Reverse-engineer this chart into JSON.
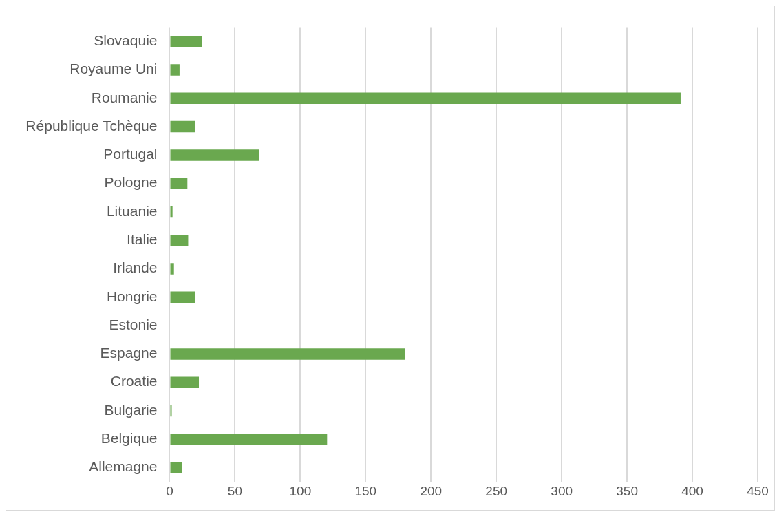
{
  "chart_data": {
    "type": "bar",
    "orientation": "horizontal",
    "categories": [
      "Slovaquie",
      "Royaume Uni",
      "Roumanie",
      "République Tchèque",
      "Portugal",
      "Pologne",
      "Lituanie",
      "Italie",
      "Irlande",
      "Hongrie",
      "Estonie",
      "Espagne",
      "Croatie",
      "Bulgarie",
      "Belgique",
      "Allemagne"
    ],
    "values": [
      24.5,
      7.6,
      391,
      19.6,
      68.7,
      13.6,
      2.2,
      14.2,
      3.3,
      19.6,
      0,
      180,
      22.4,
      1.6,
      120.5,
      9.3
    ],
    "color": "#6aa84f",
    "xlim": [
      0,
      450
    ],
    "xticks": [
      0,
      50,
      100,
      150,
      200,
      250,
      300,
      350,
      400,
      450
    ],
    "grid": "x"
  }
}
